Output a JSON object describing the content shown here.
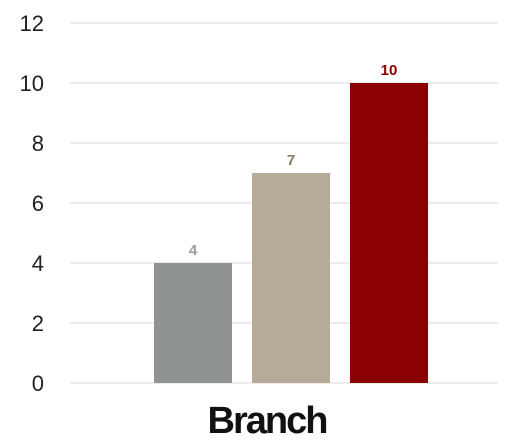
{
  "chart_data": {
    "type": "bar",
    "categories": [
      "Branch"
    ],
    "series": [
      {
        "values": [
          4
        ],
        "color": "#8f9393"
      },
      {
        "values": [
          7
        ],
        "color": "#b6aa99"
      },
      {
        "values": [
          10
        ],
        "color": "#8b0000"
      }
    ],
    "data_labels": [
      "4",
      "7",
      "10"
    ],
    "data_label_colors": [
      "#9a9a9a",
      "#8c7b5e",
      "#8b0000"
    ],
    "y_ticks": [
      "0",
      "2",
      "4",
      "6",
      "8",
      "10",
      "12"
    ],
    "ylim": [
      0,
      12
    ],
    "grid": true,
    "legend": "none",
    "title": "",
    "xlabel": "",
    "ylabel": ""
  }
}
